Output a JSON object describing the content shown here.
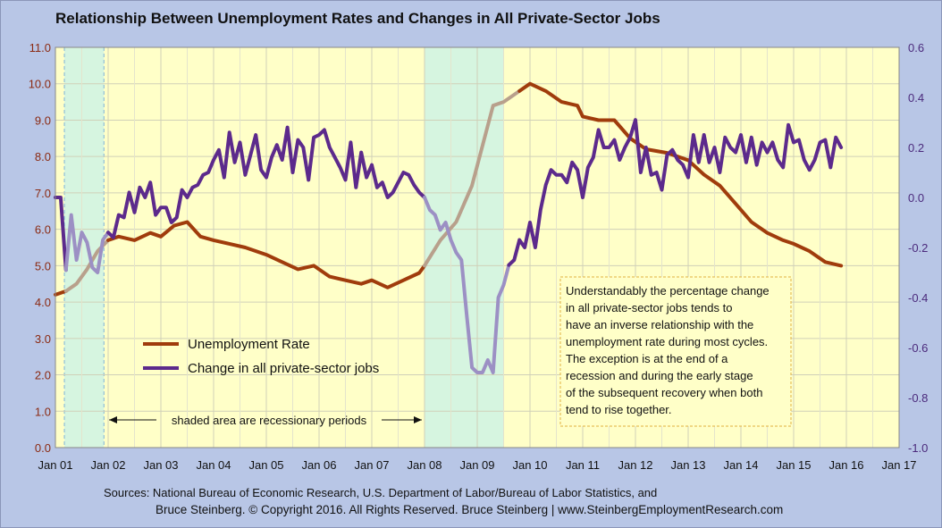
{
  "title": "Relationship Between Unemployment Rates and Changes in All Private-Sector Jobs",
  "footer": {
    "line1": "Sources: National Bureau of Economic Research, U.S. Department of Labor/Bureau of Labor Statistics, and",
    "line2": "Bruce Steinberg.  © Copyright 2016. All Rights Reserved. Bruce Steinberg | www.SteinbergEmploymentResearch.com"
  },
  "chart_data": {
    "type": "line",
    "title": "Relationship Between Unemployment Rates and Changes in All Private-Sector Jobs",
    "x_tick_labels": [
      "Jan 01",
      "Jan 02",
      "Jan 03",
      "Jan 04",
      "Jan 05",
      "Jan 06",
      "Jan 07",
      "Jan 08",
      "Jan 09",
      "Jan 10",
      "Jan 11",
      "Jan 12",
      "Jan 13",
      "Jan 14",
      "Jan 15",
      "Jan 16",
      "Jan 17"
    ],
    "xlim": [
      2001.0,
      2017.0
    ],
    "y_left": {
      "ticks": [
        "0.0",
        "1.0",
        "2.0",
        "3.0",
        "4.0",
        "5.0",
        "6.0",
        "7.0",
        "8.0",
        "9.0",
        "10.0",
        "11.0"
      ],
      "range": [
        0,
        11
      ]
    },
    "y_right": {
      "ticks": [
        "-1.0",
        "-0.8",
        "-0.6",
        "-0.4",
        "-0.2",
        "0.0",
        "0.2",
        "0.4",
        "0.6"
      ],
      "range": [
        -1.0,
        0.6
      ]
    },
    "grid": true,
    "legend_position": "lower-left",
    "recessions": [
      {
        "start": 2001.17,
        "end": 2001.92
      },
      {
        "start": 2008.0,
        "end": 2009.5
      }
    ],
    "annotation_arrow": "shaded area are recessionary periods",
    "annotation_box": "Understandably the percentage change in all private-sector jobs tends to have an inverse relationship with the unemployment rate during most cycles. The exception is at the end of a recession and during the early stage of the subsequent recovery when both tend to rise together.",
    "colors": {
      "plot_bg": "#ffffc8",
      "recession_bg": "#d6f5e0",
      "unemployment": "#a03c0c",
      "jobs": "#5c2a8c",
      "unemployment_recession": "#b8a08c",
      "jobs_recession": "#9c90c4"
    },
    "series": [
      {
        "name": "Unemployment Rate",
        "axis": "left",
        "x": [
          2001.0,
          2001.2,
          2001.4,
          2001.6,
          2001.8,
          2002.0,
          2002.2,
          2002.5,
          2002.8,
          2003.0,
          2003.25,
          2003.5,
          2003.75,
          2004.0,
          2004.3,
          2004.6,
          2005.0,
          2005.3,
          2005.6,
          2005.9,
          2006.2,
          2006.5,
          2006.8,
          2007.0,
          2007.3,
          2007.6,
          2007.9,
          2008.0,
          2008.3,
          2008.6,
          2008.9,
          2009.1,
          2009.3,
          2009.5,
          2009.8,
          2010.0,
          2010.3,
          2010.6,
          2010.9,
          2011.0,
          2011.3,
          2011.6,
          2011.9,
          2012.2,
          2012.6,
          2013.0,
          2013.3,
          2013.6,
          2013.9,
          2014.2,
          2014.5,
          2014.8,
          2015.0,
          2015.3,
          2015.6,
          2015.9
        ],
        "y": [
          4.2,
          4.3,
          4.5,
          4.9,
          5.4,
          5.7,
          5.8,
          5.7,
          5.9,
          5.8,
          6.1,
          6.2,
          5.8,
          5.7,
          5.6,
          5.5,
          5.3,
          5.1,
          4.9,
          5.0,
          4.7,
          4.6,
          4.5,
          4.6,
          4.4,
          4.6,
          4.8,
          5.0,
          5.7,
          6.2,
          7.2,
          8.3,
          9.4,
          9.5,
          9.8,
          10.0,
          9.8,
          9.5,
          9.4,
          9.1,
          9.0,
          9.0,
          8.5,
          8.2,
          8.1,
          7.9,
          7.5,
          7.2,
          6.7,
          6.2,
          5.9,
          5.7,
          5.6,
          5.4,
          5.1,
          5.0
        ]
      },
      {
        "name": "Change in all private-sector jobs",
        "axis": "right",
        "x": [
          2001.0,
          2001.1,
          2001.2,
          2001.3,
          2001.4,
          2001.5,
          2001.6,
          2001.7,
          2001.8,
          2001.9,
          2002.0,
          2002.1,
          2002.2,
          2002.3,
          2002.4,
          2002.5,
          2002.6,
          2002.7,
          2002.8,
          2002.9,
          2003.0,
          2003.1,
          2003.2,
          2003.3,
          2003.4,
          2003.5,
          2003.6,
          2003.7,
          2003.8,
          2003.9,
          2004.0,
          2004.1,
          2004.2,
          2004.3,
          2004.4,
          2004.5,
          2004.6,
          2004.7,
          2004.8,
          2004.9,
          2005.0,
          2005.1,
          2005.2,
          2005.3,
          2005.4,
          2005.5,
          2005.6,
          2005.7,
          2005.8,
          2005.9,
          2006.0,
          2006.1,
          2006.2,
          2006.3,
          2006.4,
          2006.5,
          2006.6,
          2006.7,
          2006.8,
          2006.9,
          2007.0,
          2007.1,
          2007.2,
          2007.3,
          2007.4,
          2007.5,
          2007.6,
          2007.7,
          2007.8,
          2007.9,
          2008.0,
          2008.1,
          2008.2,
          2008.3,
          2008.4,
          2008.5,
          2008.6,
          2008.7,
          2008.8,
          2008.9,
          2009.0,
          2009.1,
          2009.2,
          2009.3,
          2009.4,
          2009.5,
          2009.6,
          2009.7,
          2009.8,
          2009.9,
          2010.0,
          2010.1,
          2010.2,
          2010.3,
          2010.4,
          2010.5,
          2010.6,
          2010.7,
          2010.8,
          2010.9,
          2011.0,
          2011.1,
          2011.2,
          2011.3,
          2011.4,
          2011.5,
          2011.6,
          2011.7,
          2011.8,
          2011.9,
          2012.0,
          2012.1,
          2012.2,
          2012.3,
          2012.4,
          2012.5,
          2012.6,
          2012.7,
          2012.8,
          2012.9,
          2013.0,
          2013.1,
          2013.2,
          2013.3,
          2013.4,
          2013.5,
          2013.6,
          2013.7,
          2013.8,
          2013.9,
          2014.0,
          2014.1,
          2014.2,
          2014.3,
          2014.4,
          2014.5,
          2014.6,
          2014.7,
          2014.8,
          2014.9,
          2015.0,
          2015.1,
          2015.2,
          2015.3,
          2015.4,
          2015.5,
          2015.6,
          2015.7,
          2015.8,
          2015.9
        ],
        "y": [
          0.0,
          0.0,
          -0.29,
          -0.07,
          -0.25,
          -0.14,
          -0.18,
          -0.28,
          -0.3,
          -0.17,
          -0.14,
          -0.16,
          -0.07,
          -0.08,
          0.02,
          -0.06,
          0.04,
          0.0,
          0.06,
          -0.07,
          -0.04,
          -0.04,
          -0.1,
          -0.08,
          0.03,
          0.0,
          0.04,
          0.05,
          0.09,
          0.1,
          0.15,
          0.19,
          0.08,
          0.26,
          0.14,
          0.22,
          0.09,
          0.17,
          0.25,
          0.11,
          0.08,
          0.16,
          0.21,
          0.15,
          0.28,
          0.1,
          0.23,
          0.2,
          0.07,
          0.24,
          0.25,
          0.27,
          0.2,
          0.16,
          0.12,
          0.07,
          0.22,
          0.04,
          0.18,
          0.08,
          0.13,
          0.04,
          0.06,
          0.0,
          0.02,
          0.06,
          0.1,
          0.09,
          0.05,
          0.02,
          0.0,
          -0.05,
          -0.07,
          -0.13,
          -0.1,
          -0.17,
          -0.22,
          -0.25,
          -0.47,
          -0.68,
          -0.7,
          -0.7,
          -0.65,
          -0.7,
          -0.4,
          -0.35,
          -0.27,
          -0.25,
          -0.17,
          -0.2,
          -0.1,
          -0.2,
          -0.05,
          0.05,
          0.11,
          0.09,
          0.09,
          0.06,
          0.14,
          0.11,
          0.0,
          0.12,
          0.16,
          0.27,
          0.2,
          0.2,
          0.23,
          0.15,
          0.2,
          0.24,
          0.31,
          0.1,
          0.2,
          0.09,
          0.1,
          0.03,
          0.17,
          0.19,
          0.15,
          0.13,
          0.08,
          0.25,
          0.14,
          0.25,
          0.14,
          0.2,
          0.1,
          0.24,
          0.2,
          0.18,
          0.25,
          0.14,
          0.24,
          0.13,
          0.22,
          0.18,
          0.22,
          0.15,
          0.12,
          0.29,
          0.22,
          0.23,
          0.15,
          0.11,
          0.15,
          0.22,
          0.23,
          0.12,
          0.24,
          0.2
        ]
      }
    ]
  }
}
